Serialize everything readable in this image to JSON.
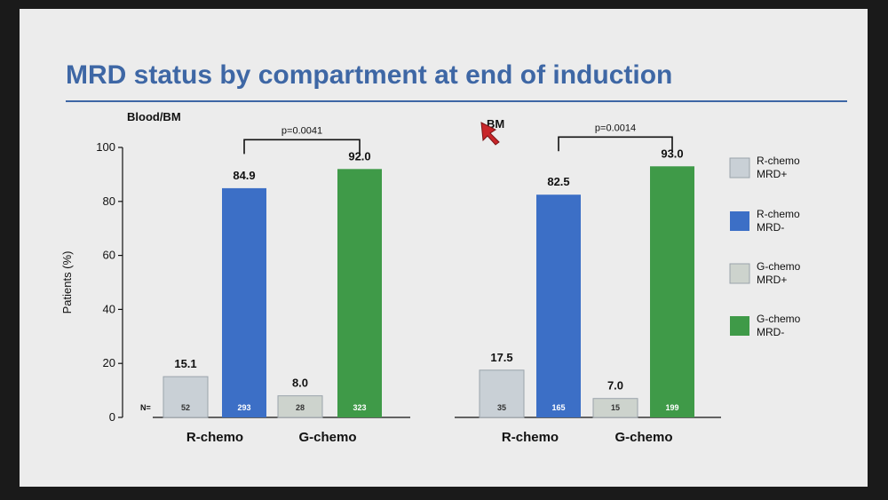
{
  "slide": {
    "title": "MRD status by compartment at end of induction"
  },
  "chart_data": {
    "type": "bar",
    "ylabel": "Patients (%)",
    "ylim": [
      0,
      100
    ],
    "yticks": [
      0,
      20,
      40,
      60,
      80,
      100
    ],
    "n_prefix": "N=",
    "legend_position": "right",
    "legend": [
      {
        "label_lines": [
          "R-chemo",
          "MRD+"
        ],
        "color": "#c9d0d6"
      },
      {
        "label_lines": [
          "R-chemo",
          "MRD-"
        ],
        "color": "#3c6fc6"
      },
      {
        "label_lines": [
          "G-chemo",
          "MRD+"
        ],
        "color": "#cdd3cd"
      },
      {
        "label_lines": [
          "G-chemo",
          "MRD-"
        ],
        "color": "#3f9a48"
      }
    ],
    "panels": [
      {
        "title": "Blood/BM",
        "p_value": "p=0.0041",
        "groups": [
          {
            "category": "R-chemo",
            "bars": [
              {
                "status": "MRD+",
                "value": 15.1,
                "label": "15.1",
                "n": "52",
                "color": "#c9d0d6"
              },
              {
                "status": "MRD-",
                "value": 84.9,
                "label": "84.9",
                "n": "293",
                "color": "#3c6fc6"
              }
            ]
          },
          {
            "category": "G-chemo",
            "bars": [
              {
                "status": "MRD+",
                "value": 8.0,
                "label": "8.0",
                "n": "28",
                "color": "#cdd3cd"
              },
              {
                "status": "MRD-",
                "value": 92.0,
                "label": "92.0",
                "n": "323",
                "color": "#3f9a48"
              }
            ]
          }
        ]
      },
      {
        "title": "BM",
        "p_value": "p=0.0014",
        "groups": [
          {
            "category": "R-chemo",
            "bars": [
              {
                "status": "MRD+",
                "value": 17.5,
                "label": "17.5",
                "n": "35",
                "color": "#c9d0d6"
              },
              {
                "status": "MRD-",
                "value": 82.5,
                "label": "82.5",
                "n": "165",
                "color": "#3c6fc6"
              }
            ]
          },
          {
            "category": "G-chemo",
            "bars": [
              {
                "status": "MRD+",
                "value": 7.0,
                "label": "7.0",
                "n": "15",
                "color": "#cdd3cd"
              },
              {
                "status": "MRD-",
                "value": 93.0,
                "label": "93.0",
                "n": "199",
                "color": "#3f9a48"
              }
            ]
          }
        ]
      }
    ]
  }
}
